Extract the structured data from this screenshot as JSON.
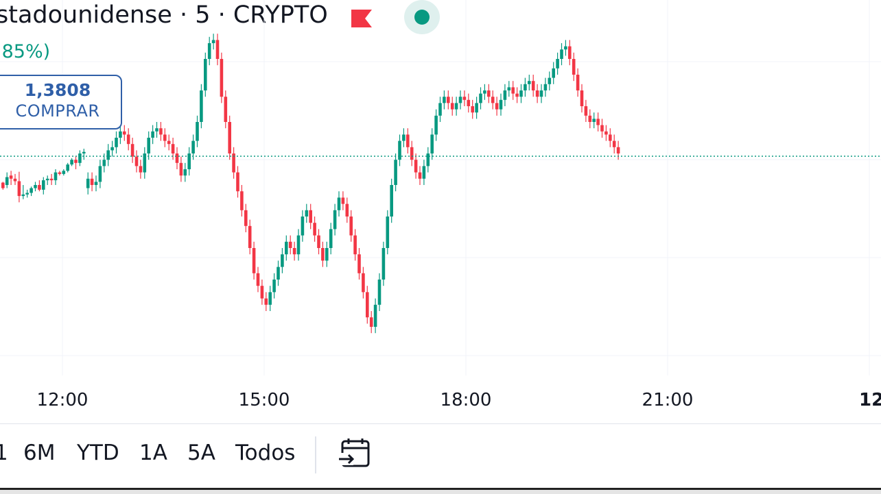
{
  "header": {
    "title": "stadounidense · 5 · CRYPTO",
    "change_pct": ",85%)",
    "flag_icon": "flag-icon",
    "status_icon": "market-open-dot-icon",
    "status_color": "#089981"
  },
  "buy": {
    "price": "1,3808",
    "label": "COMPRAR"
  },
  "colors": {
    "up": "#089981",
    "down": "#f23645",
    "accent": "#2f5fa8",
    "grid": "#f0f3fa"
  },
  "chart_data": {
    "type": "candlestick",
    "interval_minutes": 5,
    "x_tick_labels": [
      "12:00",
      "15:00",
      "18:00",
      "21:00",
      "12"
    ],
    "current_price_line": "dotted",
    "grid": true,
    "candles": [
      [
        {
          "o": 0.4925,
          "h": 0.49,
          "l": 0.515,
          "c": 0.51
        },
        {
          "o": 0.5,
          "h": 0.46,
          "l": 0.51,
          "c": 0.475
        },
        {
          "o": 0.47,
          "h": 0.455,
          "l": 0.5,
          "c": 0.48
        },
        {
          "o": 0.48,
          "h": 0.465,
          "l": 0.5,
          "c": 0.488
        },
        {
          "o": 0.488,
          "h": 0.458,
          "l": 0.555,
          "c": 0.535
        },
        {
          "o": 0.535,
          "h": 0.5,
          "l": 0.545,
          "c": 0.53
        },
        {
          "o": 0.53,
          "h": 0.515,
          "l": 0.54,
          "c": 0.525
        },
        {
          "o": 0.525,
          "h": 0.505,
          "l": 0.535,
          "c": 0.51
        },
        {
          "o": 0.51,
          "h": 0.49,
          "l": 0.52,
          "c": 0.5
        },
        {
          "o": 0.5,
          "h": 0.485,
          "l": 0.52,
          "c": 0.515
        },
        {
          "o": 0.515,
          "h": 0.475,
          "l": 0.53,
          "c": 0.485
        },
        {
          "o": 0.485,
          "h": 0.47,
          "l": 0.5,
          "c": 0.48
        },
        {
          "o": 0.48,
          "h": 0.465,
          "l": 0.5,
          "c": 0.485
        }
      ],
      [
        {
          "o": 0.485,
          "h": 0.45,
          "l": 0.5,
          "c": 0.46
        },
        {
          "o": 0.46,
          "h": 0.455,
          "l": 0.47,
          "c": 0.465
        },
        {
          "o": 0.465,
          "h": 0.45,
          "l": 0.47,
          "c": 0.455
        },
        {
          "o": 0.455,
          "h": 0.43,
          "l": 0.46,
          "c": 0.435
        },
        {
          "o": 0.435,
          "h": 0.415,
          "l": 0.44,
          "c": 0.42
        },
        {
          "o": 0.42,
          "h": 0.41,
          "l": 0.45,
          "c": 0.43
        },
        {
          "o": 0.43,
          "h": 0.39,
          "l": 0.44,
          "c": 0.4
        },
        {
          "o": 0.4,
          "h": 0.385,
          "l": 0.42,
          "c": 0.395
        }
      ]
    ]
  },
  "range": {
    "items": [
      "1",
      "6M",
      "YTD",
      "1A",
      "5A",
      "Todos"
    ],
    "calendar_icon": "calendar-goto-icon"
  }
}
